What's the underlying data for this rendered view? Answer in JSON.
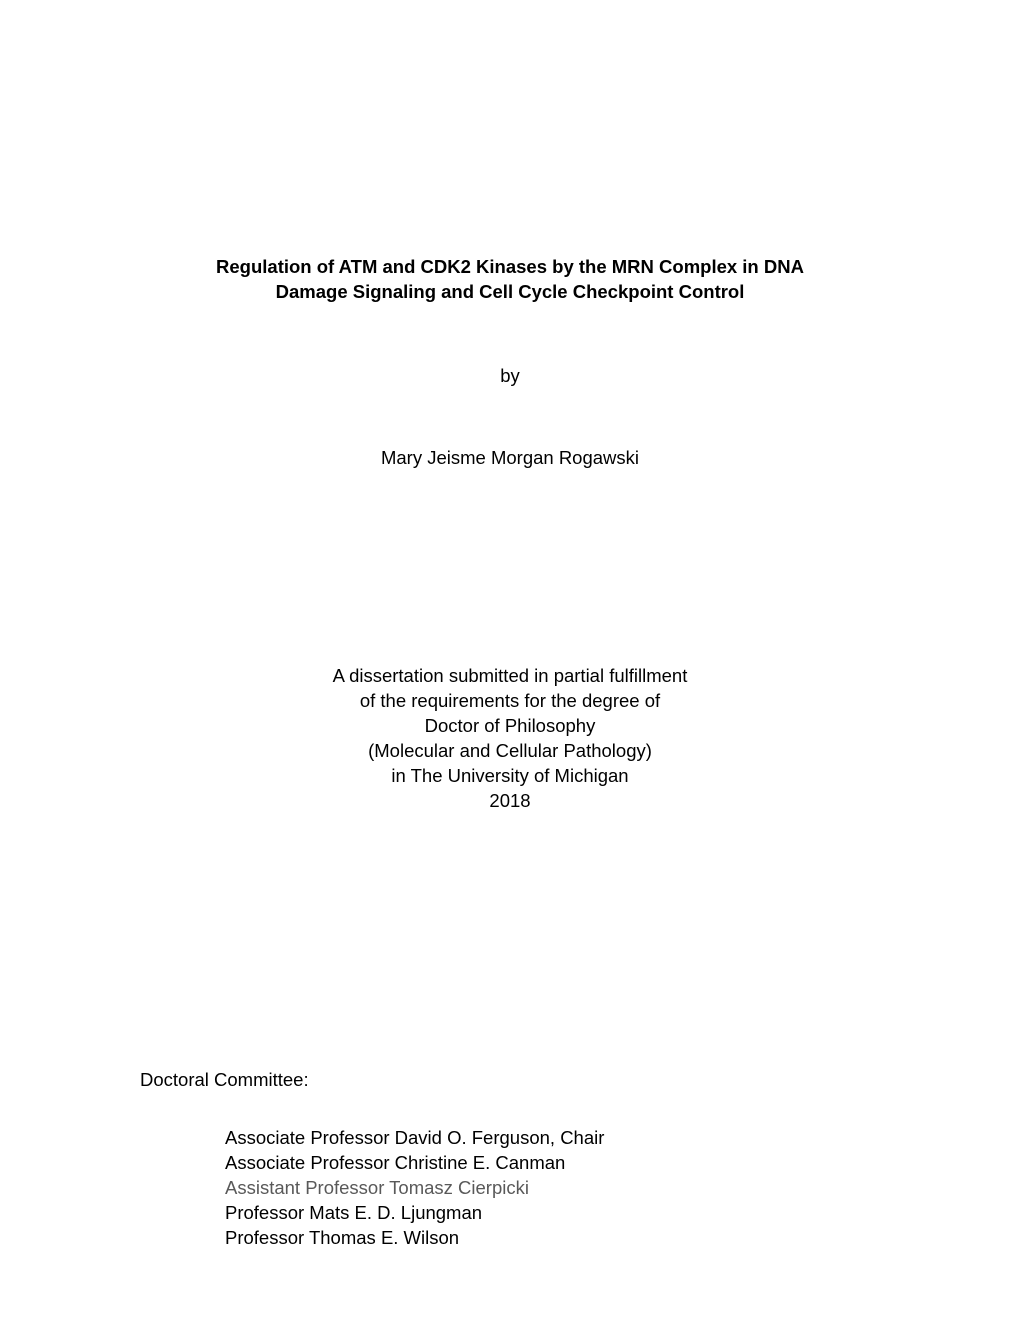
{
  "title": {
    "line1": "Regulation of ATM and CDK2 Kinases by the MRN Complex in DNA",
    "line2": "Damage Signaling and Cell Cycle Checkpoint Control"
  },
  "by_label": "by",
  "author": "Mary Jeisme Morgan Rogawski",
  "submission": {
    "line1": "A dissertation submitted in partial fulfillment",
    "line2": "of the requirements for the degree of",
    "line3": "Doctor of Philosophy",
    "line4": "(Molecular and Cellular Pathology)",
    "line5": "in The University of Michigan",
    "line6": "2018"
  },
  "committee_heading": "Doctoral Committee:",
  "committee": {
    "members": [
      {
        "text": "Associate Professor David O. Ferguson, Chair",
        "muted": false
      },
      {
        "text": "Associate Professor Christine E. Canman",
        "muted": false
      },
      {
        "text": "Assistant Professor Tomasz Cierpicki",
        "muted": true
      },
      {
        "text": "Professor Mats E. D. Ljungman",
        "muted": false
      },
      {
        "text": "Professor Thomas E. Wilson",
        "muted": false
      }
    ]
  },
  "colors": {
    "background": "#ffffff",
    "text": "#000000",
    "muted_text": "#595959"
  },
  "typography": {
    "title_fontsize": 18.5,
    "title_weight": "bold",
    "body_fontsize": 18.5,
    "font_family": "Arial"
  }
}
